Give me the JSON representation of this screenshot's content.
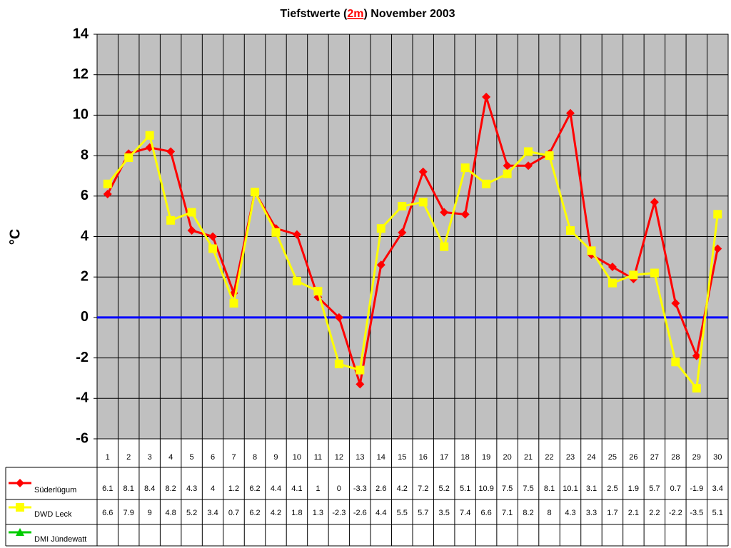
{
  "chart_data": {
    "type": "line",
    "title_parts": [
      "Tiefstwerte (",
      "2m",
      ") November 2003"
    ],
    "y_label": "°C",
    "categories": [
      "1",
      "2",
      "3",
      "4",
      "5",
      "6",
      "7",
      "8",
      "9",
      "10",
      "11",
      "12",
      "13",
      "14",
      "15",
      "16",
      "17",
      "18",
      "19",
      "20",
      "21",
      "22",
      "23",
      "24",
      "25",
      "26",
      "27",
      "28",
      "29",
      "30"
    ],
    "series": [
      {
        "name": "Süderlügum",
        "color": "#ff0000",
        "marker": "diamond",
        "values": [
          6.1,
          8.1,
          8.4,
          8.2,
          4.3,
          4,
          1.2,
          6.2,
          4.4,
          4.1,
          1,
          0,
          -3.3,
          2.6,
          4.2,
          7.2,
          5.2,
          5.1,
          10.9,
          7.5,
          7.5,
          8.1,
          10.1,
          3.1,
          2.5,
          1.9,
          5.7,
          0.7,
          -1.9,
          3.4
        ]
      },
      {
        "name": "DWD Leck",
        "color": "#ffff00",
        "marker": "square",
        "values": [
          6.6,
          7.9,
          9,
          4.8,
          5.2,
          3.4,
          0.7,
          6.2,
          4.2,
          1.8,
          1.3,
          -2.3,
          -2.6,
          4.4,
          5.5,
          5.7,
          3.5,
          7.4,
          6.6,
          7.1,
          8.2,
          8,
          4.3,
          3.3,
          1.7,
          2.1,
          2.2,
          -2.2,
          -3.5,
          5.1
        ]
      },
      {
        "name": "DMI Jündewatt",
        "color": "#00cc00",
        "marker": "triangle",
        "values": [
          null,
          null,
          null,
          null,
          null,
          null,
          null,
          null,
          null,
          null,
          null,
          null,
          null,
          null,
          null,
          null,
          null,
          null,
          null,
          null,
          null,
          null,
          null,
          null,
          null,
          null,
          null,
          null,
          null,
          null
        ]
      }
    ],
    "ylim": [
      -6,
      14
    ],
    "yticks": [
      -6,
      -4,
      -2,
      0,
      2,
      4,
      6,
      8,
      10,
      12,
      14
    ],
    "grid": true,
    "plot_background": "#c0c0c0",
    "reference_line": {
      "value": 0,
      "color": "#0000ff"
    },
    "data_table": true
  }
}
